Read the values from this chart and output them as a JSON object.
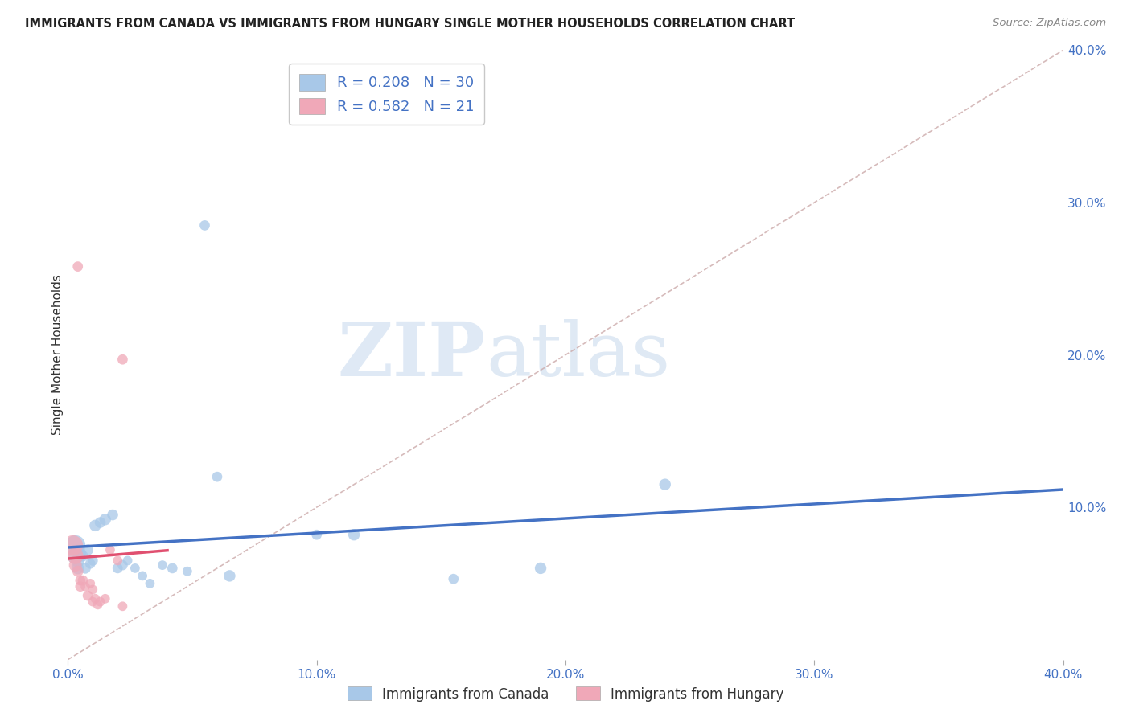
{
  "title": "IMMIGRANTS FROM CANADA VS IMMIGRANTS FROM HUNGARY SINGLE MOTHER HOUSEHOLDS CORRELATION CHART",
  "source": "Source: ZipAtlas.com",
  "ylabel": "Single Mother Households",
  "xlim": [
    0.0,
    0.4
  ],
  "ylim": [
    0.0,
    0.4
  ],
  "xticks": [
    0.0,
    0.1,
    0.2,
    0.3,
    0.4
  ],
  "yticks": [
    0.0,
    0.1,
    0.2,
    0.3,
    0.4
  ],
  "xticklabels": [
    "0.0%",
    "10.0%",
    "20.0%",
    "30.0%",
    "40.0%"
  ],
  "yticklabels_right": [
    "",
    "10.0%",
    "20.0%",
    "30.0%",
    "40.0%"
  ],
  "watermark_zip": "ZIP",
  "watermark_atlas": "atlas",
  "canada_color": "#a8c8e8",
  "hungary_color": "#f0a8b8",
  "canada_line_color": "#4472c4",
  "hungary_line_color": "#e05070",
  "diag_line_color": "#ccaaaa",
  "canada_R": 0.208,
  "canada_N": 30,
  "hungary_R": 0.582,
  "hungary_N": 21,
  "canada_points": [
    [
      0.003,
      0.075,
      55
    ],
    [
      0.003,
      0.068,
      35
    ],
    [
      0.004,
      0.065,
      25
    ],
    [
      0.004,
      0.06,
      20
    ],
    [
      0.005,
      0.07,
      18
    ],
    [
      0.006,
      0.068,
      16
    ],
    [
      0.007,
      0.06,
      16
    ],
    [
      0.008,
      0.072,
      16
    ],
    [
      0.009,
      0.063,
      14
    ],
    [
      0.01,
      0.065,
      14
    ],
    [
      0.011,
      0.088,
      18
    ],
    [
      0.013,
      0.09,
      16
    ],
    [
      0.015,
      0.092,
      18
    ],
    [
      0.018,
      0.095,
      16
    ],
    [
      0.02,
      0.06,
      14
    ],
    [
      0.022,
      0.062,
      14
    ],
    [
      0.024,
      0.065,
      12
    ],
    [
      0.027,
      0.06,
      12
    ],
    [
      0.03,
      0.055,
      12
    ],
    [
      0.033,
      0.05,
      12
    ],
    [
      0.038,
      0.062,
      12
    ],
    [
      0.042,
      0.06,
      14
    ],
    [
      0.048,
      0.058,
      12
    ],
    [
      0.06,
      0.12,
      14
    ],
    [
      0.065,
      0.055,
      18
    ],
    [
      0.1,
      0.082,
      14
    ],
    [
      0.115,
      0.082,
      18
    ],
    [
      0.155,
      0.053,
      14
    ],
    [
      0.19,
      0.06,
      18
    ],
    [
      0.24,
      0.115,
      18
    ]
  ],
  "canada_outlier": [
    0.055,
    0.285,
    14
  ],
  "hungary_points": [
    [
      0.002,
      0.075,
      55
    ],
    [
      0.003,
      0.068,
      35
    ],
    [
      0.003,
      0.062,
      22
    ],
    [
      0.004,
      0.058,
      16
    ],
    [
      0.005,
      0.052,
      14
    ],
    [
      0.005,
      0.048,
      14
    ],
    [
      0.006,
      0.052,
      14
    ],
    [
      0.007,
      0.048,
      12
    ],
    [
      0.008,
      0.042,
      14
    ],
    [
      0.009,
      0.05,
      12
    ],
    [
      0.01,
      0.046,
      12
    ],
    [
      0.01,
      0.038,
      12
    ],
    [
      0.011,
      0.04,
      12
    ],
    [
      0.012,
      0.036,
      12
    ],
    [
      0.013,
      0.038,
      12
    ],
    [
      0.015,
      0.04,
      12
    ],
    [
      0.017,
      0.072,
      12
    ],
    [
      0.02,
      0.065,
      12
    ],
    [
      0.022,
      0.035,
      12
    ],
    [
      0.004,
      0.258,
      14
    ],
    [
      0.022,
      0.197,
      14
    ]
  ]
}
